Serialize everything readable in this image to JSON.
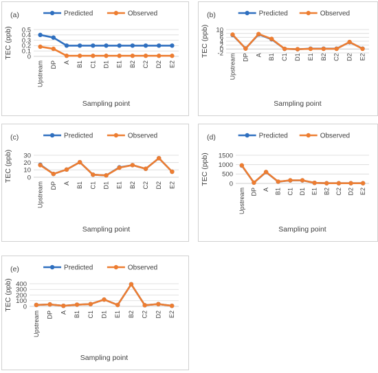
{
  "legend": {
    "predicted": "Predicted",
    "observed": "Observed"
  },
  "colors": {
    "predicted": "#2e6fbf",
    "observed": "#ed7d31",
    "grid": "#d9d9d9",
    "axis": "#bfbfbf"
  },
  "chart_data": [
    {
      "id": "a",
      "type": "line",
      "panel_label": "(a)",
      "xlabel": "Sampling point",
      "ylabel": "TEC (ppb)",
      "categories": [
        "Upstream",
        "DP",
        "A",
        "B1",
        "C1",
        "D1",
        "E1",
        "B2",
        "C2",
        "D2",
        "E2"
      ],
      "yticks": [
        "0.5",
        "0.4",
        "0.3",
        "0.2",
        "0.1",
        "0"
      ],
      "ylim": [
        0,
        0.5
      ],
      "grid": true,
      "legend_position": "top",
      "series": [
        {
          "name": "Predicted",
          "values": [
            0.4,
            0.35,
            0.2,
            0.2,
            0.2,
            0.2,
            0.2,
            0.2,
            0.2,
            0.2,
            0.2
          ]
        },
        {
          "name": "Observed",
          "values": [
            0.18,
            0.14,
            0.01,
            0.01,
            0.01,
            0.01,
            0.01,
            0.01,
            0.01,
            0.01,
            0.01
          ]
        }
      ]
    },
    {
      "id": "b",
      "type": "line",
      "panel_label": "(b)",
      "xlabel": "Sampling point",
      "ylabel": "TEC (ppb)",
      "categories": [
        "Upstream",
        "DP",
        "A",
        "B1",
        "C1",
        "D1",
        "E1",
        "B2",
        "C2",
        "D2",
        "E2"
      ],
      "yticks": [
        "10",
        "8",
        "6",
        "4",
        "2",
        "0",
        "-2"
      ],
      "ylim": [
        -2,
        10
      ],
      "grid": true,
      "legend_position": "top",
      "series": [
        {
          "name": "Predicted",
          "values": [
            7.2,
            0.3,
            7.5,
            5.0,
            0.1,
            -0.1,
            0.2,
            0.2,
            0.2,
            3.5,
            0.2
          ]
        },
        {
          "name": "Observed",
          "values": [
            7.4,
            0.2,
            7.7,
            5.2,
            0.1,
            -0.1,
            0.1,
            0.1,
            0.1,
            3.6,
            0.1
          ]
        }
      ]
    },
    {
      "id": "c",
      "type": "line",
      "panel_label": "(c)",
      "xlabel": "Sampling point",
      "ylabel": "TEC (ppb)",
      "categories": [
        "Upstream",
        "DP",
        "A",
        "B1",
        "C1",
        "D1",
        "E1",
        "B2",
        "C2",
        "D2",
        "E2"
      ],
      "yticks": [
        "30",
        "20",
        "10",
        "0"
      ],
      "ylim": [
        0,
        30
      ],
      "grid": true,
      "legend_position": "top",
      "series": [
        {
          "name": "Predicted",
          "values": [
            17,
            4.5,
            10.5,
            20.5,
            3.5,
            2.5,
            13.5,
            16.5,
            11.5,
            26,
            7.5
          ]
        },
        {
          "name": "Observed",
          "values": [
            16.5,
            4.5,
            10.5,
            20.5,
            3.5,
            2.5,
            13,
            16.5,
            11.5,
            26,
            7.5
          ]
        }
      ]
    },
    {
      "id": "d",
      "type": "line",
      "panel_label": "(d)",
      "xlabel": "Sampling point",
      "ylabel": "TEC (ppb)",
      "categories": [
        "Upstream",
        "DP",
        "A",
        "B1",
        "C1",
        "D1",
        "E1",
        "B2",
        "C2",
        "D2",
        "E2"
      ],
      "yticks": [
        "1500",
        "1000",
        "500",
        "0"
      ],
      "ylim": [
        0,
        1500
      ],
      "grid": true,
      "legend_position": "top",
      "series": [
        {
          "name": "Predicted",
          "values": [
            950,
            40,
            600,
            90,
            160,
            160,
            30,
            10,
            10,
            10,
            10
          ]
        },
        {
          "name": "Observed",
          "values": [
            960,
            40,
            610,
            95,
            165,
            165,
            30,
            10,
            10,
            10,
            10
          ]
        }
      ]
    },
    {
      "id": "e",
      "type": "line",
      "panel_label": "(e)",
      "xlabel": "Sampling point",
      "ylabel": "TEC (ppb)",
      "categories": [
        "Upstream",
        "DP",
        "A",
        "B1",
        "C1",
        "D1",
        "E1",
        "B2",
        "C2",
        "D2",
        "E2"
      ],
      "yticks": [
        "400",
        "300",
        "200",
        "100",
        "0"
      ],
      "ylim": [
        0,
        400
      ],
      "grid": true,
      "legend_position": "top",
      "series": [
        {
          "name": "Predicted",
          "values": [
            25,
            35,
            10,
            30,
            40,
            120,
            25,
            390,
            20,
            40,
            10
          ]
        },
        {
          "name": "Observed",
          "values": [
            25,
            35,
            10,
            30,
            40,
            120,
            25,
            390,
            20,
            40,
            10
          ]
        }
      ]
    }
  ]
}
